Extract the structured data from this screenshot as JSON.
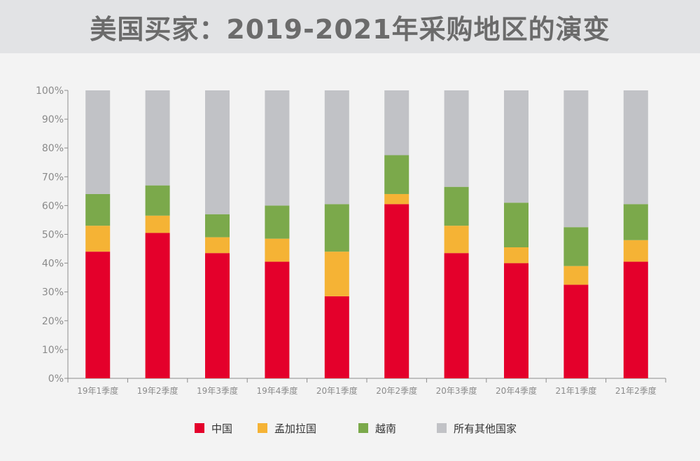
{
  "title": "美国买家：2019-2021年采购地区的演变",
  "chart_data": {
    "type": "bar",
    "stacked": true,
    "categories": [
      "19年1季度",
      "19年2季度",
      "19年3季度",
      "19年4季度",
      "20年1季度",
      "20年2季度",
      "20年3季度",
      "20年4季度",
      "21年1季度",
      "21年2季度"
    ],
    "series": [
      {
        "name": "中国",
        "color": "#e4002b",
        "values": [
          44,
          50.5,
          43.5,
          40.5,
          28.5,
          60.5,
          43.5,
          40,
          32.5,
          40.5
        ]
      },
      {
        "name": "孟加拉国",
        "color": "#f5b335",
        "values": [
          9,
          6,
          5.5,
          8,
          15.5,
          3.5,
          9.5,
          5.5,
          6.5,
          7.5
        ]
      },
      {
        "name": "越南",
        "color": "#7ba94b",
        "values": [
          11,
          10.5,
          8,
          11.5,
          16.5,
          13.5,
          13.5,
          15.5,
          13.5,
          12.5
        ]
      },
      {
        "name": "所有其他国家",
        "color": "#c1c2c6",
        "values": [
          36,
          33,
          43,
          40,
          39.5,
          22.5,
          33.5,
          39,
          47.5,
          39.5
        ]
      }
    ],
    "ylim": [
      0,
      100
    ],
    "yticks": [
      "0%",
      "10%",
      "20%",
      "30%",
      "40%",
      "50%",
      "60%",
      "70%",
      "80%",
      "90%",
      "100%"
    ],
    "grid": false,
    "legend_position": "bottom"
  }
}
